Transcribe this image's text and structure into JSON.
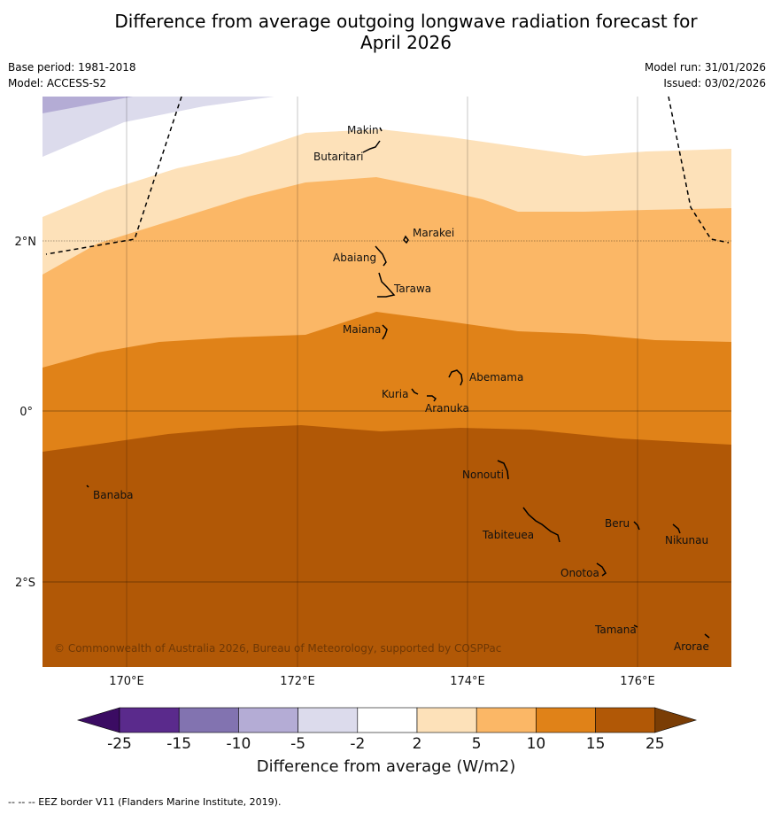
{
  "title": {
    "line1": "Difference from average outgoing longwave radiation forecast for",
    "line2": "April 2026"
  },
  "meta": {
    "base_period": "Base period: 1981-2018",
    "model": "Model: ACCESS-S2",
    "model_run": "Model run: 31/01/2026",
    "issued": "Issued: 03/02/2026"
  },
  "map": {
    "copyright": "© Commonwealth of Australia 2026, Bureau of Meteorology, supported by COSPPac",
    "lon_ticks": [
      "170°E",
      "172°E",
      "174°E",
      "176°E"
    ],
    "lat_ticks": [
      "2°N",
      "0°",
      "2°S"
    ],
    "places": [
      {
        "name": "Makin"
      },
      {
        "name": "Butaritari"
      },
      {
        "name": "Marakei"
      },
      {
        "name": "Abaiang"
      },
      {
        "name": "Tarawa"
      },
      {
        "name": "Maiana"
      },
      {
        "name": "Abemama"
      },
      {
        "name": "Kuria"
      },
      {
        "name": "Aranuka"
      },
      {
        "name": "Nonouti"
      },
      {
        "name": "Banaba"
      },
      {
        "name": "Beru"
      },
      {
        "name": "Tabiteuea"
      },
      {
        "name": "Nikunau"
      },
      {
        "name": "Onotoa"
      },
      {
        "name": "Tamana"
      },
      {
        "name": "Arorae"
      }
    ]
  },
  "colorbar": {
    "label": "Difference from average (W/m2)",
    "ticks": [
      "-25",
      "-15",
      "-10",
      "-5",
      "-2",
      "2",
      "5",
      "10",
      "15",
      "25"
    ],
    "bins": [
      {
        "range": "-25 to -15",
        "color": "#5a2a8c"
      },
      {
        "range": "-15 to -10",
        "color": "#8273b0"
      },
      {
        "range": "-10 to -5",
        "color": "#b4acd5"
      },
      {
        "range": "-5 to -2",
        "color": "#dcdbec"
      },
      {
        "range": "-2 to 2",
        "color": "#ffffff"
      },
      {
        "range": "2 to 5",
        "color": "#fde1b9"
      },
      {
        "range": "5 to 10",
        "color": "#fbb766"
      },
      {
        "range": "10 to 15",
        "color": "#e08218"
      },
      {
        "range": "15 to 25",
        "color": "#b15806"
      }
    ],
    "under_color": "#3b0c63",
    "over_color": "#7a3d05"
  },
  "footer": "--  --  -- EEZ border V11 (Flanders Marine Institute, 2019)."
}
